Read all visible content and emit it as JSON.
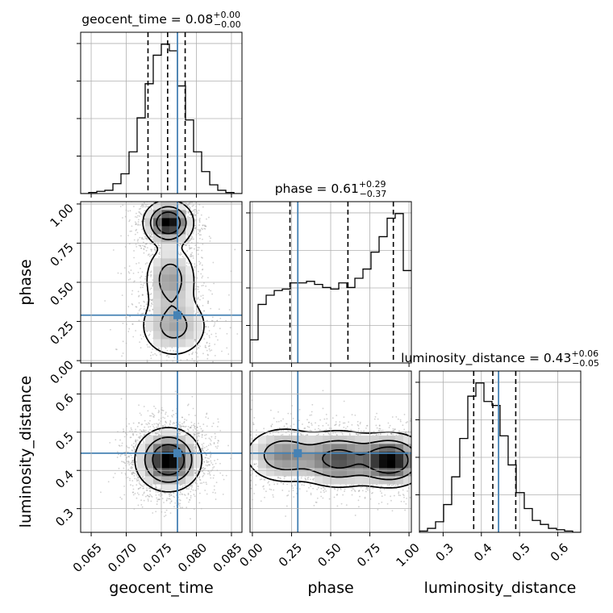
{
  "chart_data": {
    "type": "corner",
    "parameters": [
      "geocent_time",
      "phase",
      "luminosity_distance"
    ],
    "axis_labels": [
      "geocent_time",
      "phase",
      "luminosity_distance"
    ],
    "ranges": [
      [
        0.0635,
        0.0865
      ],
      [
        -0.015,
        1.015
      ],
      [
        0.238,
        0.66
      ]
    ],
    "ticks": [
      [
        "0.065",
        "0.070",
        "0.075",
        "0.080",
        "0.085"
      ],
      [
        "0.00",
        "0.25",
        "0.50",
        "0.75",
        "1.00"
      ],
      [
        "0.3",
        "0.4",
        "0.5",
        "0.6"
      ]
    ],
    "truths": [
      0.0773,
      0.29,
      0.445
    ],
    "titles": [
      {
        "name": "geocent_time",
        "median": "0.08",
        "plus": "+0.00",
        "minus": "−0.00"
      },
      {
        "name": "phase",
        "median": "0.61",
        "plus": "+0.29",
        "minus": "−0.37"
      },
      {
        "name": "luminosity_distance",
        "median": "0.43",
        "plus": "+0.06",
        "minus": "−0.05"
      }
    ],
    "quantiles": [
      [
        0.0731,
        0.0759,
        0.0784
      ],
      [
        0.24,
        0.61,
        0.9
      ],
      [
        0.38,
        0.43,
        0.49
      ]
    ],
    "histograms": [
      {
        "edges_start": 0.0635,
        "bin_width": 0.00115,
        "counts": [
          0,
          1,
          2,
          3,
          9,
          18,
          38,
          69,
          100,
          126,
          136,
          130,
          98,
          67,
          38,
          20,
          8,
          3,
          1,
          0
        ]
      },
      {
        "edges_start": -0.015,
        "bin_width": 0.0515,
        "counts": [
          15,
          38,
          44,
          47,
          48,
          52,
          52,
          53,
          51,
          49,
          48,
          52,
          49,
          55,
          61,
          72,
          82,
          94,
          97,
          60
        ]
      },
      {
        "edges_start": 0.238,
        "bin_width": 0.0211,
        "counts": [
          1,
          3,
          8,
          21,
          42,
          71,
          103,
          113,
          99,
          96,
          73,
          51,
          30,
          18,
          9,
          6,
          3,
          2,
          1,
          0
        ]
      }
    ],
    "densities": [
      {
        "x": 0,
        "y": 1,
        "blobs": [
          {
            "mx": 0.076,
            "my": 0.88,
            "sx": 0.0016,
            "sy": 0.065,
            "w": 1.0
          },
          {
            "mx": 0.0763,
            "my": 0.52,
            "sx": 0.0018,
            "sy": 0.11,
            "w": 0.42
          },
          {
            "mx": 0.0768,
            "my": 0.22,
            "sx": 0.0024,
            "sy": 0.1,
            "w": 0.38
          }
        ]
      },
      {
        "x": 0,
        "y": 2,
        "blobs": [
          {
            "mx": 0.076,
            "my": 0.428,
            "sx": 0.0021,
            "sy": 0.037,
            "w": 1.0
          }
        ]
      },
      {
        "x": 1,
        "y": 2,
        "blobs": [
          {
            "mx": 0.88,
            "my": 0.427,
            "sx": 0.11,
            "sy": 0.032,
            "w": 1.0
          },
          {
            "mx": 0.55,
            "my": 0.43,
            "sx": 0.13,
            "sy": 0.035,
            "w": 0.72
          },
          {
            "mx": 0.2,
            "my": 0.44,
            "sx": 0.12,
            "sy": 0.035,
            "w": 0.5
          }
        ]
      }
    ],
    "truth_color": "#4682b4",
    "contour_color": "#000000",
    "scatter_color": "#9a9a9a",
    "grid": true
  }
}
